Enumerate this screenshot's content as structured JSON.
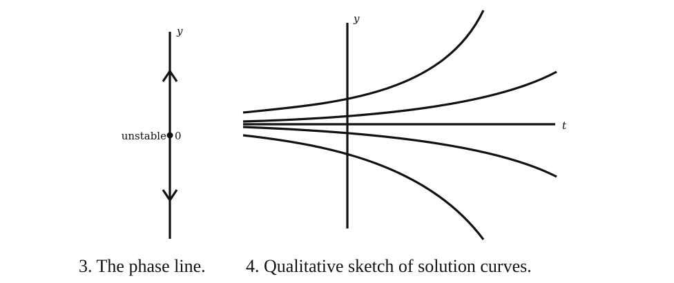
{
  "phase_line": {
    "axis_label": "y",
    "point_label": "0",
    "stability_label": "unstable",
    "arrow_up": "away from 0 (upward)",
    "arrow_down": "away from 0 (downward)"
  },
  "sketch": {
    "y_axis_label": "y",
    "t_axis_label": "t"
  },
  "captions": {
    "left": "3. The phase line.",
    "right": "4. Qualitative sketch of solution curves."
  },
  "colors": {
    "ink": "#111111",
    "background": "#ffffff"
  }
}
